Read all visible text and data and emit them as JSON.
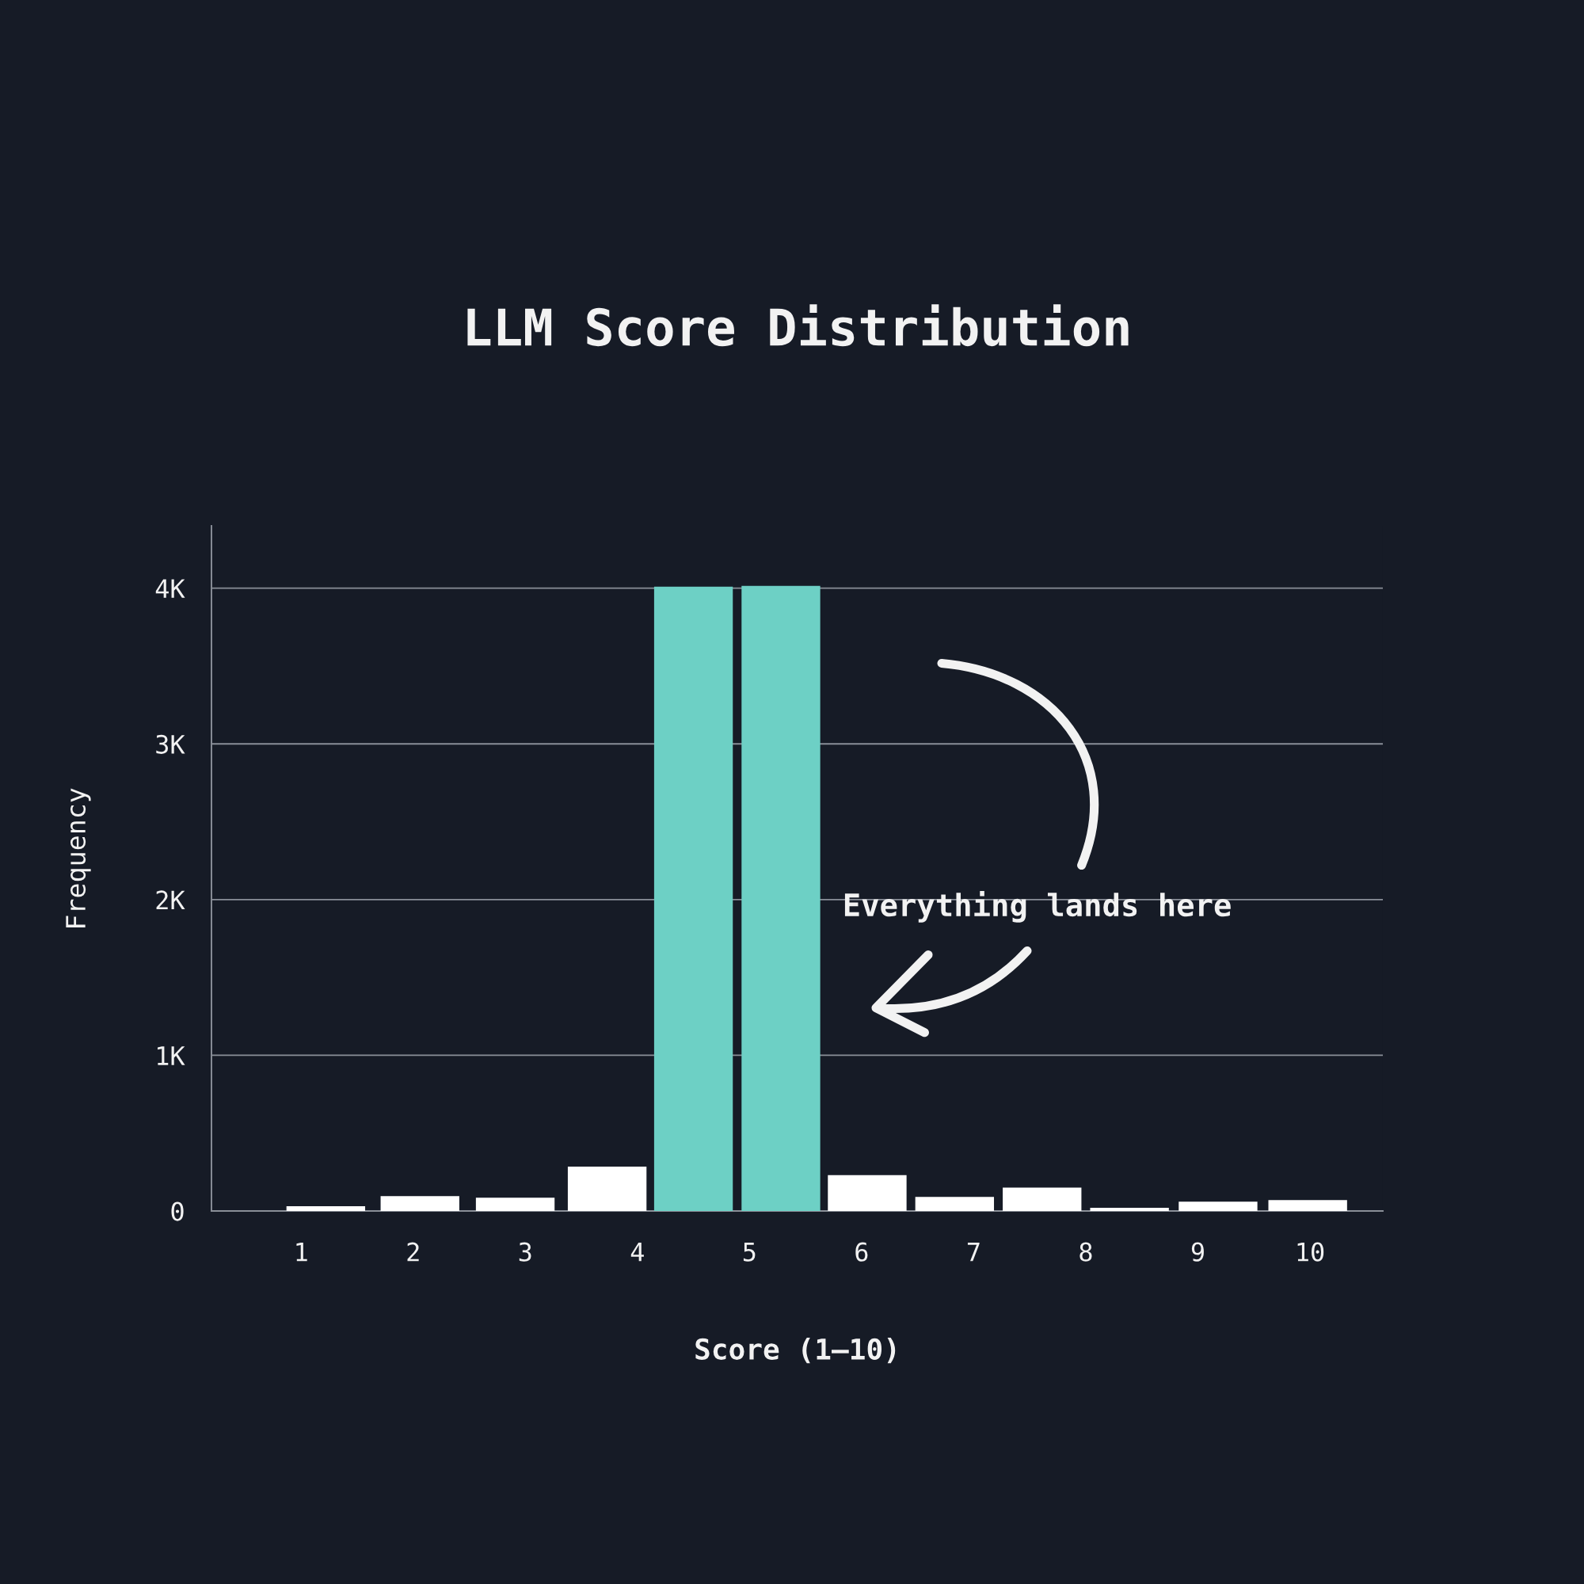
{
  "chart_data": {
    "type": "bar",
    "title": "LLM Score Distribution",
    "xlabel": "Score (1—10)",
    "ylabel": "Frequency",
    "x": [
      1.22,
      2.06,
      2.91,
      3.73,
      4.5,
      5.28,
      6.05,
      6.83,
      7.61,
      8.39,
      9.18,
      9.98
    ],
    "values": [
      30,
      95,
      85,
      285,
      4010,
      4015,
      230,
      90,
      150,
      20,
      60,
      70
    ],
    "colors": [
      "#ffffff",
      "#ffffff",
      "#ffffff",
      "#ffffff",
      "#6dd0c5",
      "#6dd0c5",
      "#ffffff",
      "#ffffff",
      "#ffffff",
      "#ffffff",
      "#ffffff",
      "#ffffff"
    ],
    "xlim": [
      0.2,
      10.65
    ],
    "xticks": [
      1,
      2,
      3,
      4,
      5,
      6,
      7,
      8,
      9,
      10
    ],
    "ylim": [
      0,
      4400
    ],
    "yticks": [
      0,
      {
        "value": 1000,
        "label": "1K"
      },
      {
        "value": 2000,
        "label": "2K"
      },
      {
        "value": 3000,
        "label": "3K"
      },
      {
        "value": 4000,
        "label": "4K"
      }
    ],
    "grid": "y",
    "annotations": [
      "Everything lands here"
    ]
  }
}
